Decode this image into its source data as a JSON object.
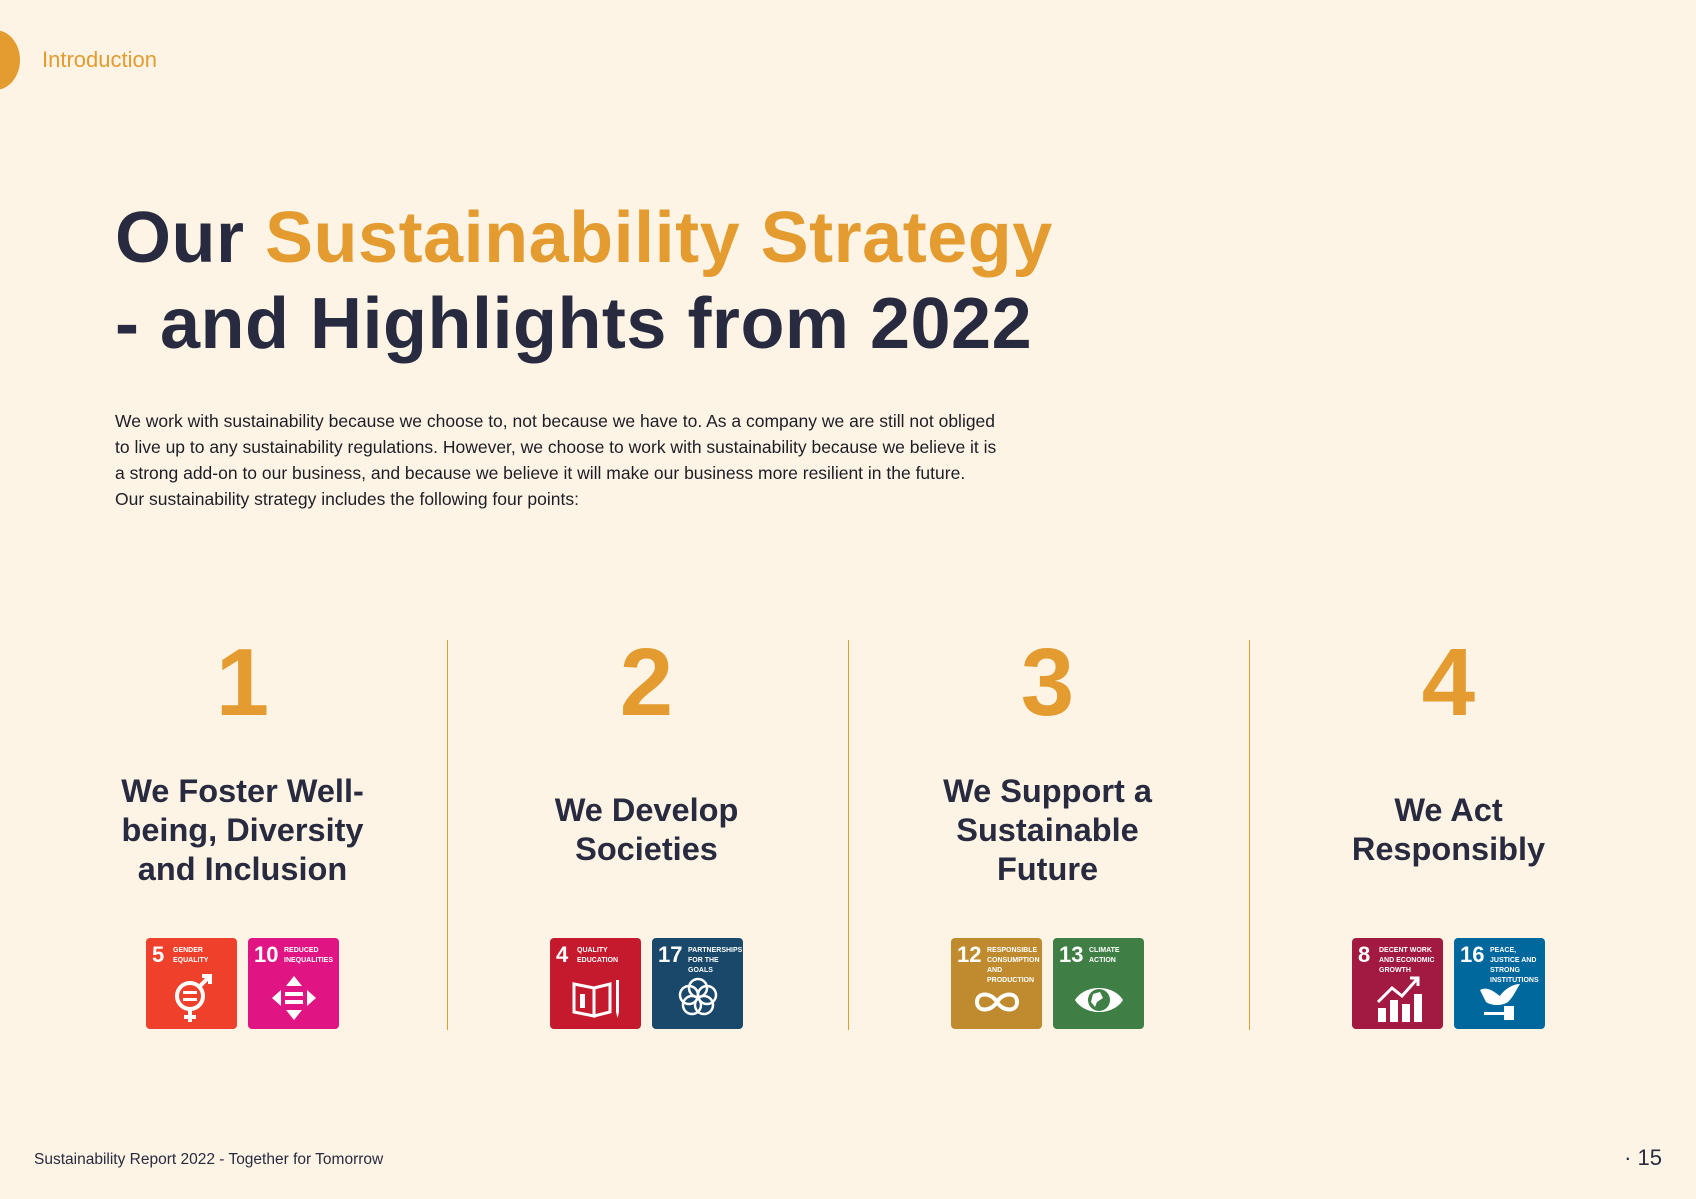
{
  "header": {
    "section": "Introduction"
  },
  "title": {
    "part1": "Our",
    "accent": "Sustainability Strategy",
    "line2": "- and Highlights from 2022"
  },
  "intro": {
    "lines": [
      "We work with sustainability because we choose to, not because we have to. As a company we are still not obliged",
      "to live up to any sustainability regulations. However, we choose to work with sustainability because we believe it is",
      "a strong add-on to our business, and because we believe it will make our business more resilient in the future.",
      "Our sustainability strategy includes the following four points:"
    ]
  },
  "colors": {
    "accent": "#e49b2f",
    "dark": "#282a3f",
    "background": "#fdf4e5"
  },
  "points": [
    {
      "number": "1",
      "title_lines": [
        "We Foster Well-",
        "being, Diversity",
        "and Inclusion"
      ],
      "sdgs": [
        {
          "number": "5",
          "label": "Gender Equality",
          "color": "#ef402b",
          "icon": "gender-equality-icon"
        },
        {
          "number": "10",
          "label": "Reduced Inequalities",
          "color": "#e11484",
          "icon": "reduced-inequalities-icon"
        }
      ]
    },
    {
      "number": "2",
      "title_lines": [
        "We Develop",
        "Societies"
      ],
      "sdgs": [
        {
          "number": "4",
          "label": "Quality Education",
          "color": "#c5192d",
          "icon": "book-icon"
        },
        {
          "number": "17",
          "label": "Partnerships for the Goals",
          "color": "#19486a",
          "icon": "flower-icon"
        }
      ]
    },
    {
      "number": "3",
      "title_lines": [
        "We Support a",
        "Sustainable",
        "Future"
      ],
      "sdgs": [
        {
          "number": "12",
          "label": "Responsible Consumption and Production",
          "color": "#bf8b2e",
          "icon": "infinity-icon"
        },
        {
          "number": "13",
          "label": "Climate Action",
          "color": "#3f7e44",
          "icon": "eye-globe-icon"
        }
      ]
    },
    {
      "number": "4",
      "title_lines": [
        "We Act",
        "Responsibly"
      ],
      "sdgs": [
        {
          "number": "8",
          "label": "Decent Work and Economic Growth",
          "color": "#a21942",
          "icon": "growth-chart-icon"
        },
        {
          "number": "16",
          "label": "Peace, Justice and Strong Institutions",
          "color": "#00689d",
          "icon": "dove-gavel-icon"
        }
      ]
    }
  ],
  "footer": {
    "text": "Sustainability  Report  2022 - Together for Tomorrow",
    "page": "· 15"
  }
}
